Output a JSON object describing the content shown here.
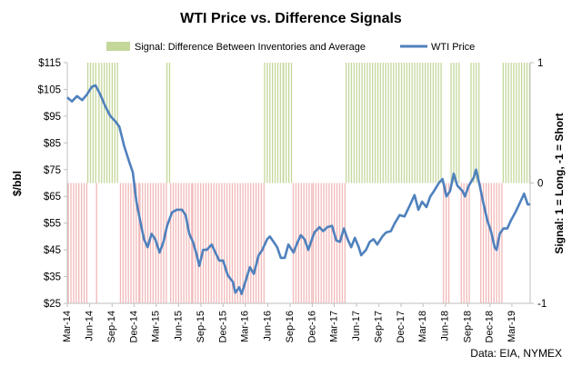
{
  "chart_data": {
    "type": "bar+line",
    "title": "WTI Price vs. Difference Signals",
    "y_left_label": "$/bbl",
    "y_right_label": "Signal: 1 = Long, -1 = Short",
    "source": "Data: EIA, NYMEX",
    "y_left_ticks": [
      "$115",
      "$105",
      "$95",
      "$85",
      "$75",
      "$65",
      "$55",
      "$45",
      "$35",
      "$25"
    ],
    "y_left_range": [
      25,
      115
    ],
    "y_right_ticks": [
      "1",
      "0",
      "-1"
    ],
    "y_right_range": [
      -1,
      1
    ],
    "x_range": [
      "2014-03-01",
      "2019-05-15"
    ],
    "x_tick_labels": [
      "Mar-14",
      "Jun-14",
      "Sep-14",
      "Dec-14",
      "Mar-15",
      "Jun-15",
      "Sep-15",
      "Dec-15",
      "Mar-16",
      "Jun-16",
      "Sep-16",
      "Dec-16",
      "Mar-17",
      "Jun-17",
      "Sep-17",
      "Dec-17",
      "Mar-18",
      "Jun-18",
      "Sep-18",
      "Dec-18",
      "Mar-19"
    ],
    "x_tick_dates": [
      "2014-03-01",
      "2014-06-01",
      "2014-09-01",
      "2014-12-01",
      "2015-03-01",
      "2015-06-01",
      "2015-09-01",
      "2015-12-01",
      "2016-03-01",
      "2016-06-01",
      "2016-09-01",
      "2016-12-01",
      "2017-03-01",
      "2017-06-01",
      "2017-09-01",
      "2017-12-01",
      "2018-03-01",
      "2018-06-01",
      "2018-09-01",
      "2018-12-01",
      "2019-03-01"
    ],
    "legend": [
      {
        "name": "Signal: Difference Between Inventories and Average",
        "color": "#c4d79b"
      },
      {
        "name": "WTI Price",
        "color": "#4f81bd"
      }
    ],
    "legend_position": "top",
    "grid": false,
    "series": [
      {
        "name": "Signal: Difference Between Inventories and Average",
        "kind": "signal-bars",
        "long_color": "#c4d79b",
        "short_color": "#f2b8b8",
        "segments": [
          {
            "start": "2014-03-01",
            "end": "2014-05-20",
            "signal": -1
          },
          {
            "start": "2014-05-20",
            "end": "2014-06-25",
            "signal": 1
          },
          {
            "start": "2014-06-25",
            "end": "2014-07-05",
            "signal": -1
          },
          {
            "start": "2014-07-05",
            "end": "2014-10-01",
            "signal": 1
          },
          {
            "start": "2014-10-01",
            "end": "2014-12-20",
            "signal": -1
          },
          {
            "start": "2014-12-20",
            "end": "2015-04-10",
            "signal": -1
          },
          {
            "start": "2015-04-10",
            "end": "2015-04-25",
            "signal": 1
          },
          {
            "start": "2015-04-25",
            "end": "2015-07-25",
            "signal": -1
          },
          {
            "start": "2015-07-25",
            "end": "2016-05-15",
            "signal": -1
          },
          {
            "start": "2016-05-15",
            "end": "2016-08-01",
            "signal": 1
          },
          {
            "start": "2016-08-01",
            "end": "2016-09-10",
            "signal": 1
          },
          {
            "start": "2016-09-10",
            "end": "2016-12-01",
            "signal": -1
          },
          {
            "start": "2016-12-01",
            "end": "2017-04-15",
            "signal": -1
          },
          {
            "start": "2017-04-15",
            "end": "2018-05-20",
            "signal": 1
          },
          {
            "start": "2018-05-20",
            "end": "2018-06-20",
            "signal": -1
          },
          {
            "start": "2018-06-20",
            "end": "2018-08-01",
            "signal": 1
          },
          {
            "start": "2018-08-01",
            "end": "2018-09-10",
            "signal": -1
          },
          {
            "start": "2018-09-10",
            "end": "2018-10-20",
            "signal": 1
          },
          {
            "start": "2018-10-20",
            "end": "2019-01-20",
            "signal": -1
          },
          {
            "start": "2019-01-20",
            "end": "2019-05-15",
            "signal": 1
          }
        ]
      },
      {
        "name": "WTI Price",
        "kind": "line",
        "color": "#4f81bd",
        "points": [
          [
            "2014-03-01",
            102
          ],
          [
            "2014-03-20",
            100.5
          ],
          [
            "2014-04-10",
            102.5
          ],
          [
            "2014-05-01",
            101
          ],
          [
            "2014-05-20",
            103
          ],
          [
            "2014-06-10",
            106
          ],
          [
            "2014-06-25",
            106.5
          ],
          [
            "2014-07-15",
            103
          ],
          [
            "2014-08-05",
            98.5
          ],
          [
            "2014-08-25",
            95
          ],
          [
            "2014-09-15",
            93
          ],
          [
            "2014-10-01",
            91
          ],
          [
            "2014-10-20",
            84
          ],
          [
            "2014-11-10",
            78
          ],
          [
            "2014-11-25",
            74
          ],
          [
            "2014-12-10",
            63
          ],
          [
            "2014-12-25",
            56
          ],
          [
            "2015-01-10",
            49
          ],
          [
            "2015-01-25",
            46
          ],
          [
            "2015-02-10",
            51
          ],
          [
            "2015-02-25",
            49
          ],
          [
            "2015-03-15",
            44
          ],
          [
            "2015-03-31",
            48
          ],
          [
            "2015-04-15",
            54
          ],
          [
            "2015-05-05",
            59
          ],
          [
            "2015-05-25",
            60
          ],
          [
            "2015-06-15",
            60
          ],
          [
            "2015-06-30",
            58
          ],
          [
            "2015-07-15",
            51
          ],
          [
            "2015-07-30",
            48
          ],
          [
            "2015-08-15",
            43
          ],
          [
            "2015-08-25",
            39
          ],
          [
            "2015-09-10",
            45
          ],
          [
            "2015-09-25",
            45
          ],
          [
            "2015-10-15",
            47
          ],
          [
            "2015-10-30",
            44
          ],
          [
            "2015-11-15",
            41
          ],
          [
            "2015-12-01",
            41
          ],
          [
            "2015-12-20",
            35.5
          ],
          [
            "2016-01-10",
            33
          ],
          [
            "2016-01-20",
            29
          ],
          [
            "2016-02-05",
            31
          ],
          [
            "2016-02-15",
            28.5
          ],
          [
            "2016-03-01",
            33
          ],
          [
            "2016-03-20",
            38.5
          ],
          [
            "2016-04-05",
            36
          ],
          [
            "2016-04-25",
            43
          ],
          [
            "2016-05-10",
            45
          ],
          [
            "2016-05-30",
            49
          ],
          [
            "2016-06-10",
            50
          ],
          [
            "2016-06-25",
            48
          ],
          [
            "2016-07-10",
            46
          ],
          [
            "2016-07-25",
            42
          ],
          [
            "2016-08-10",
            42
          ],
          [
            "2016-08-25",
            47
          ],
          [
            "2016-09-15",
            44
          ],
          [
            "2016-09-30",
            47.5
          ],
          [
            "2016-10-15",
            50.5
          ],
          [
            "2016-10-30",
            49
          ],
          [
            "2016-11-15",
            45
          ],
          [
            "2016-11-30",
            49
          ],
          [
            "2016-12-10",
            51.5
          ],
          [
            "2016-12-30",
            53.5
          ],
          [
            "2017-01-15",
            52
          ],
          [
            "2017-02-01",
            53.5
          ],
          [
            "2017-02-20",
            54
          ],
          [
            "2017-03-10",
            48.5
          ],
          [
            "2017-03-25",
            48
          ],
          [
            "2017-04-10",
            53
          ],
          [
            "2017-04-25",
            49
          ],
          [
            "2017-05-10",
            46
          ],
          [
            "2017-05-25",
            49.5
          ],
          [
            "2017-06-10",
            46
          ],
          [
            "2017-06-20",
            43
          ],
          [
            "2017-07-10",
            45
          ],
          [
            "2017-07-25",
            48
          ],
          [
            "2017-08-10",
            49
          ],
          [
            "2017-08-25",
            47
          ],
          [
            "2017-09-15",
            50
          ],
          [
            "2017-09-30",
            51.5
          ],
          [
            "2017-10-20",
            52
          ],
          [
            "2017-11-05",
            55
          ],
          [
            "2017-11-25",
            58
          ],
          [
            "2017-12-15",
            57.5
          ],
          [
            "2018-01-05",
            61.5
          ],
          [
            "2018-01-25",
            65.5
          ],
          [
            "2018-02-10",
            60
          ],
          [
            "2018-02-25",
            63
          ],
          [
            "2018-03-15",
            61
          ],
          [
            "2018-03-31",
            65
          ],
          [
            "2018-04-15",
            67
          ],
          [
            "2018-05-05",
            70
          ],
          [
            "2018-05-20",
            71.5
          ],
          [
            "2018-06-05",
            65
          ],
          [
            "2018-06-20",
            67
          ],
          [
            "2018-07-05",
            73.5
          ],
          [
            "2018-07-20",
            69
          ],
          [
            "2018-08-10",
            67
          ],
          [
            "2018-08-20",
            65
          ],
          [
            "2018-09-05",
            69
          ],
          [
            "2018-09-25",
            72
          ],
          [
            "2018-10-05",
            75
          ],
          [
            "2018-10-20",
            69
          ],
          [
            "2018-11-05",
            62
          ],
          [
            "2018-11-20",
            56
          ],
          [
            "2018-12-05",
            52
          ],
          [
            "2018-12-20",
            46
          ],
          [
            "2018-12-28",
            45
          ],
          [
            "2019-01-10",
            51
          ],
          [
            "2019-01-25",
            53
          ],
          [
            "2019-02-10",
            53
          ],
          [
            "2019-02-25",
            56
          ],
          [
            "2019-03-15",
            59
          ],
          [
            "2019-04-05",
            63
          ],
          [
            "2019-04-20",
            66
          ],
          [
            "2019-05-05",
            62
          ],
          [
            "2019-05-15",
            62
          ]
        ]
      }
    ]
  }
}
